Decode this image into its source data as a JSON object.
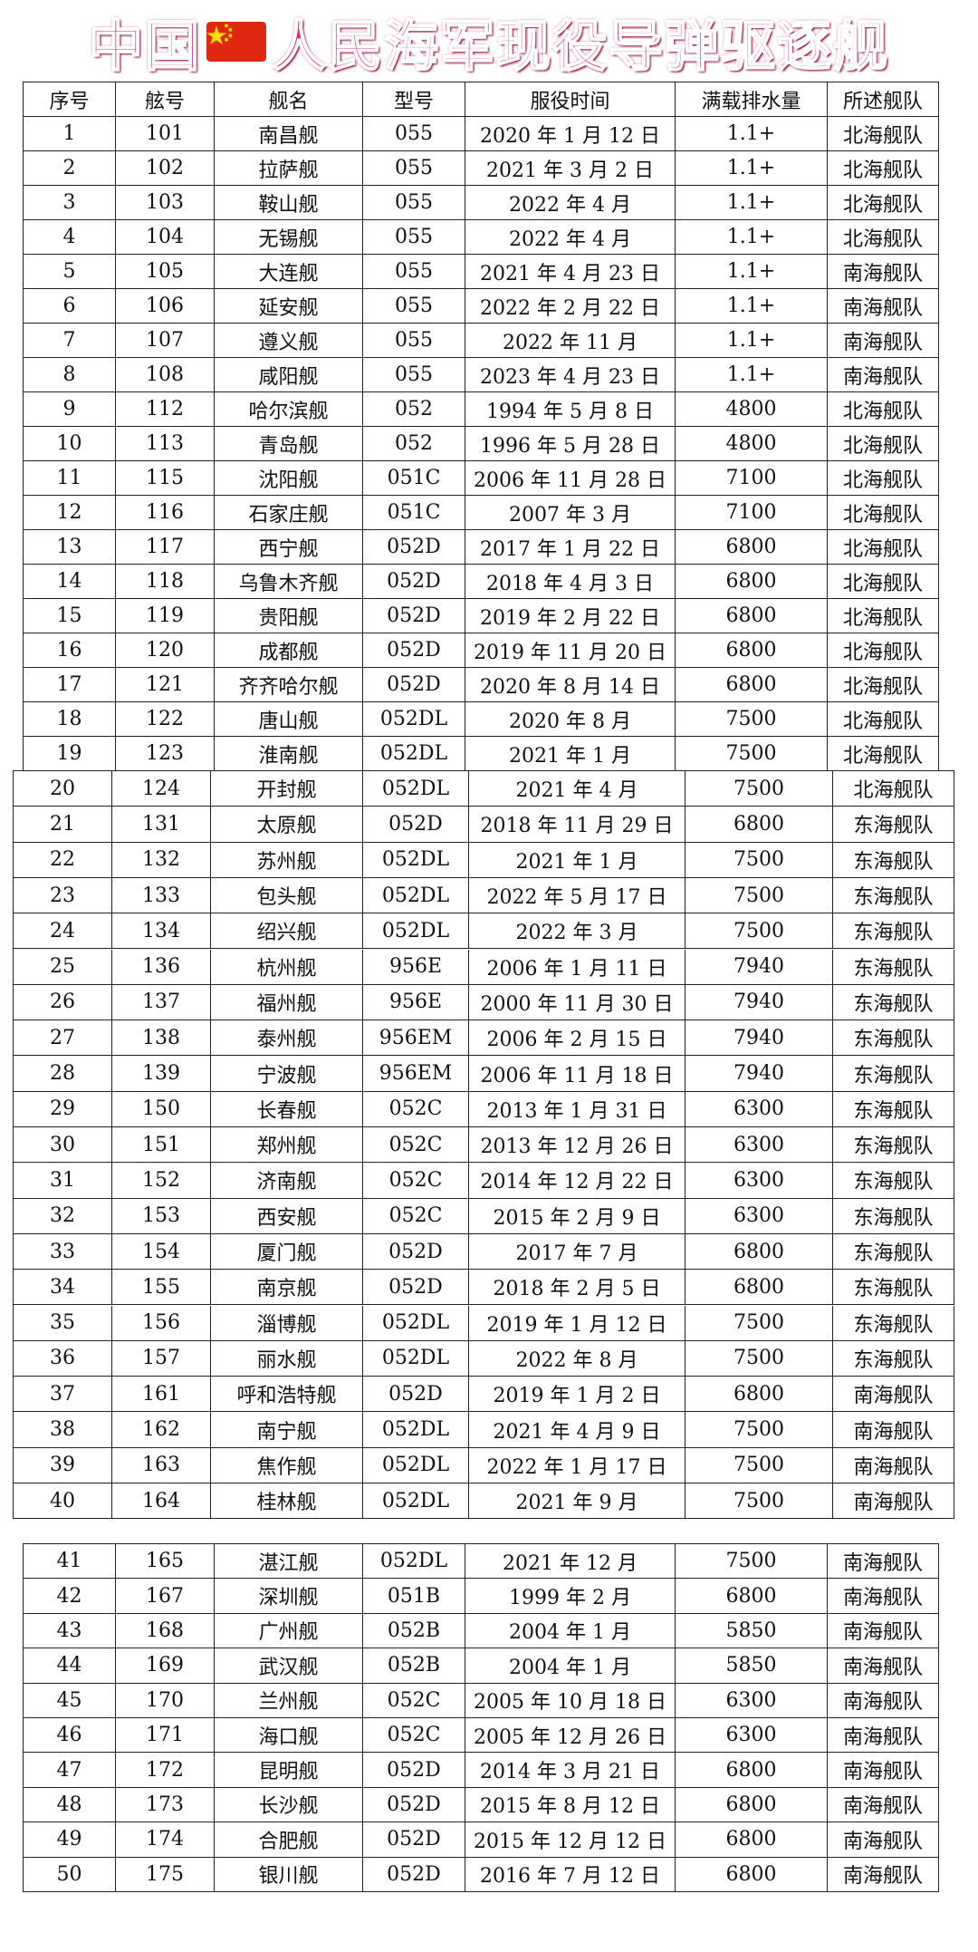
{
  "title": {
    "left": "中国",
    "right": "人民海军现役导弹驱逐舰"
  },
  "table": {
    "header": [
      "序号",
      "舷号",
      "舰名",
      "型号",
      "服役时间",
      "满载排水量",
      "所述舰队"
    ],
    "rows": [
      [
        "1",
        "101",
        "南昌舰",
        "055",
        "2020 年 1 月 12 日",
        "1.1+",
        "北海舰队"
      ],
      [
        "2",
        "102",
        "拉萨舰",
        "055",
        "2021 年 3 月 2 日",
        "1.1+",
        "北海舰队"
      ],
      [
        "3",
        "103",
        "鞍山舰",
        "055",
        "2022 年 4 月",
        "1.1+",
        "北海舰队"
      ],
      [
        "4",
        "104",
        "无锡舰",
        "055",
        "2022 年 4 月",
        "1.1+",
        "北海舰队"
      ],
      [
        "5",
        "105",
        "大连舰",
        "055",
        "2021 年 4 月 23 日",
        "1.1+",
        "南海舰队"
      ],
      [
        "6",
        "106",
        "延安舰",
        "055",
        "2022 年 2 月 22 日",
        "1.1+",
        "南海舰队"
      ],
      [
        "7",
        "107",
        "遵义舰",
        "055",
        "2022 年 11 月",
        "1.1+",
        "南海舰队"
      ],
      [
        "8",
        "108",
        "咸阳舰",
        "055",
        "2023 年 4 月 23 日",
        "1.1+",
        "南海舰队"
      ],
      [
        "9",
        "112",
        "哈尔滨舰",
        "052",
        "1994 年 5 月 8 日",
        "4800",
        "北海舰队"
      ],
      [
        "10",
        "113",
        "青岛舰",
        "052",
        "1996 年 5 月 28 日",
        "4800",
        "北海舰队"
      ],
      [
        "11",
        "115",
        "沈阳舰",
        "051C",
        "2006 年 11 月 28 日",
        "7100",
        "北海舰队"
      ],
      [
        "12",
        "116",
        "石家庄舰",
        "051C",
        "2007 年 3 月",
        "7100",
        "北海舰队"
      ],
      [
        "13",
        "117",
        "西宁舰",
        "052D",
        "2017 年 1 月 22 日",
        "6800",
        "北海舰队"
      ],
      [
        "14",
        "118",
        "乌鲁木齐舰",
        "052D",
        "2018 年 4 月 3 日",
        "6800",
        "北海舰队"
      ],
      [
        "15",
        "119",
        "贵阳舰",
        "052D",
        "2019 年 2 月 22 日",
        "6800",
        "北海舰队"
      ],
      [
        "16",
        "120",
        "成都舰",
        "052D",
        "2019 年 11 月 20 日",
        "6800",
        "北海舰队"
      ],
      [
        "17",
        "121",
        "齐齐哈尔舰",
        "052D",
        "2020 年 8 月 14 日",
        "6800",
        "北海舰队"
      ],
      [
        "18",
        "122",
        "唐山舰",
        "052DL",
        "2020 年 8 月",
        "7500",
        "北海舰队"
      ],
      [
        "19",
        "123",
        "淮南舰",
        "052DL",
        "2021 年 1 月",
        "7500",
        "北海舰队"
      ],
      [
        "20",
        "124",
        "开封舰",
        "052DL",
        "2021 年 4 月",
        "7500",
        "北海舰队"
      ],
      [
        "21",
        "131",
        "太原舰",
        "052D",
        "2018 年 11 月 29 日",
        "6800",
        "东海舰队"
      ],
      [
        "22",
        "132",
        "苏州舰",
        "052DL",
        "2021 年 1 月",
        "7500",
        "东海舰队"
      ],
      [
        "23",
        "133",
        "包头舰",
        "052DL",
        "2022 年 5 月 17 日",
        "7500",
        "东海舰队"
      ],
      [
        "24",
        "134",
        "绍兴舰",
        "052DL",
        "2022 年 3 月",
        "7500",
        "东海舰队"
      ],
      [
        "25",
        "136",
        "杭州舰",
        "956E",
        "2006 年 1 月 11 日",
        "7940",
        "东海舰队"
      ],
      [
        "26",
        "137",
        "福州舰",
        "956E",
        "2000 年 11 月 30 日",
        "7940",
        "东海舰队"
      ],
      [
        "27",
        "138",
        "泰州舰",
        "956EM",
        "2006 年 2 月 15 日",
        "7940",
        "东海舰队"
      ],
      [
        "28",
        "139",
        "宁波舰",
        "956EM",
        "2006 年 11 月 18 日",
        "7940",
        "东海舰队"
      ],
      [
        "29",
        "150",
        "长春舰",
        "052C",
        "2013 年 1 月 31 日",
        "6300",
        "东海舰队"
      ],
      [
        "30",
        "151",
        "郑州舰",
        "052C",
        "2013 年 12 月 26 日",
        "6300",
        "东海舰队"
      ],
      [
        "31",
        "152",
        "济南舰",
        "052C",
        "2014 年 12 月 22 日",
        "6300",
        "东海舰队"
      ],
      [
        "32",
        "153",
        "西安舰",
        "052C",
        "2015 年 2 月 9 日",
        "6300",
        "东海舰队"
      ],
      [
        "33",
        "154",
        "厦门舰",
        "052D",
        "2017 年 7 月",
        "6800",
        "东海舰队"
      ],
      [
        "34",
        "155",
        "南京舰",
        "052D",
        "2018 年 2 月 5 日",
        "6800",
        "东海舰队"
      ],
      [
        "35",
        "156",
        "淄博舰",
        "052DL",
        "2019 年 1 月 12 日",
        "7500",
        "东海舰队"
      ],
      [
        "36",
        "157",
        "丽水舰",
        "052DL",
        "2022 年 8 月",
        "7500",
        "东海舰队"
      ],
      [
        "37",
        "161",
        "呼和浩特舰",
        "052D",
        "2019 年 1 月 2 日",
        "6800",
        "南海舰队"
      ],
      [
        "38",
        "162",
        "南宁舰",
        "052DL",
        "2021 年 4 月 9 日",
        "7500",
        "南海舰队"
      ],
      [
        "39",
        "163",
        "焦作舰",
        "052DL",
        "2022 年 1 月 17 日",
        "7500",
        "南海舰队"
      ],
      [
        "40",
        "164",
        "桂林舰",
        "052DL",
        "2021 年 9 月",
        "7500",
        "南海舰队"
      ],
      [
        "41",
        "165",
        "湛江舰",
        "052DL",
        "2021 年 12 月",
        "7500",
        "南海舰队"
      ],
      [
        "42",
        "167",
        "深圳舰",
        "051B",
        "1999 年 2 月",
        "6800",
        "南海舰队"
      ],
      [
        "43",
        "168",
        "广州舰",
        "052B",
        "2004 年 1 月",
        "5850",
        "南海舰队"
      ],
      [
        "44",
        "169",
        "武汉舰",
        "052B",
        "2004 年 1 月",
        "5850",
        "南海舰队"
      ],
      [
        "45",
        "170",
        "兰州舰",
        "052C",
        "2005 年 10 月 18 日",
        "6300",
        "南海舰队"
      ],
      [
        "46",
        "171",
        "海口舰",
        "052C",
        "2005 年 12 月 26 日",
        "6300",
        "南海舰队"
      ],
      [
        "47",
        "172",
        "昆明舰",
        "052D",
        "2014 年 3 月 21 日",
        "6800",
        "南海舰队"
      ],
      [
        "48",
        "173",
        "长沙舰",
        "052D",
        "2015 年 8 月 12 日",
        "6800",
        "南海舰队"
      ],
      [
        "49",
        "174",
        "合肥舰",
        "052D",
        "2015 年 12 月 12 日",
        "6800",
        "南海舰队"
      ],
      [
        "50",
        "175",
        "银川舰",
        "052D",
        "2016 年 7 月 12 日",
        "6800",
        "南海舰队"
      ]
    ]
  }
}
